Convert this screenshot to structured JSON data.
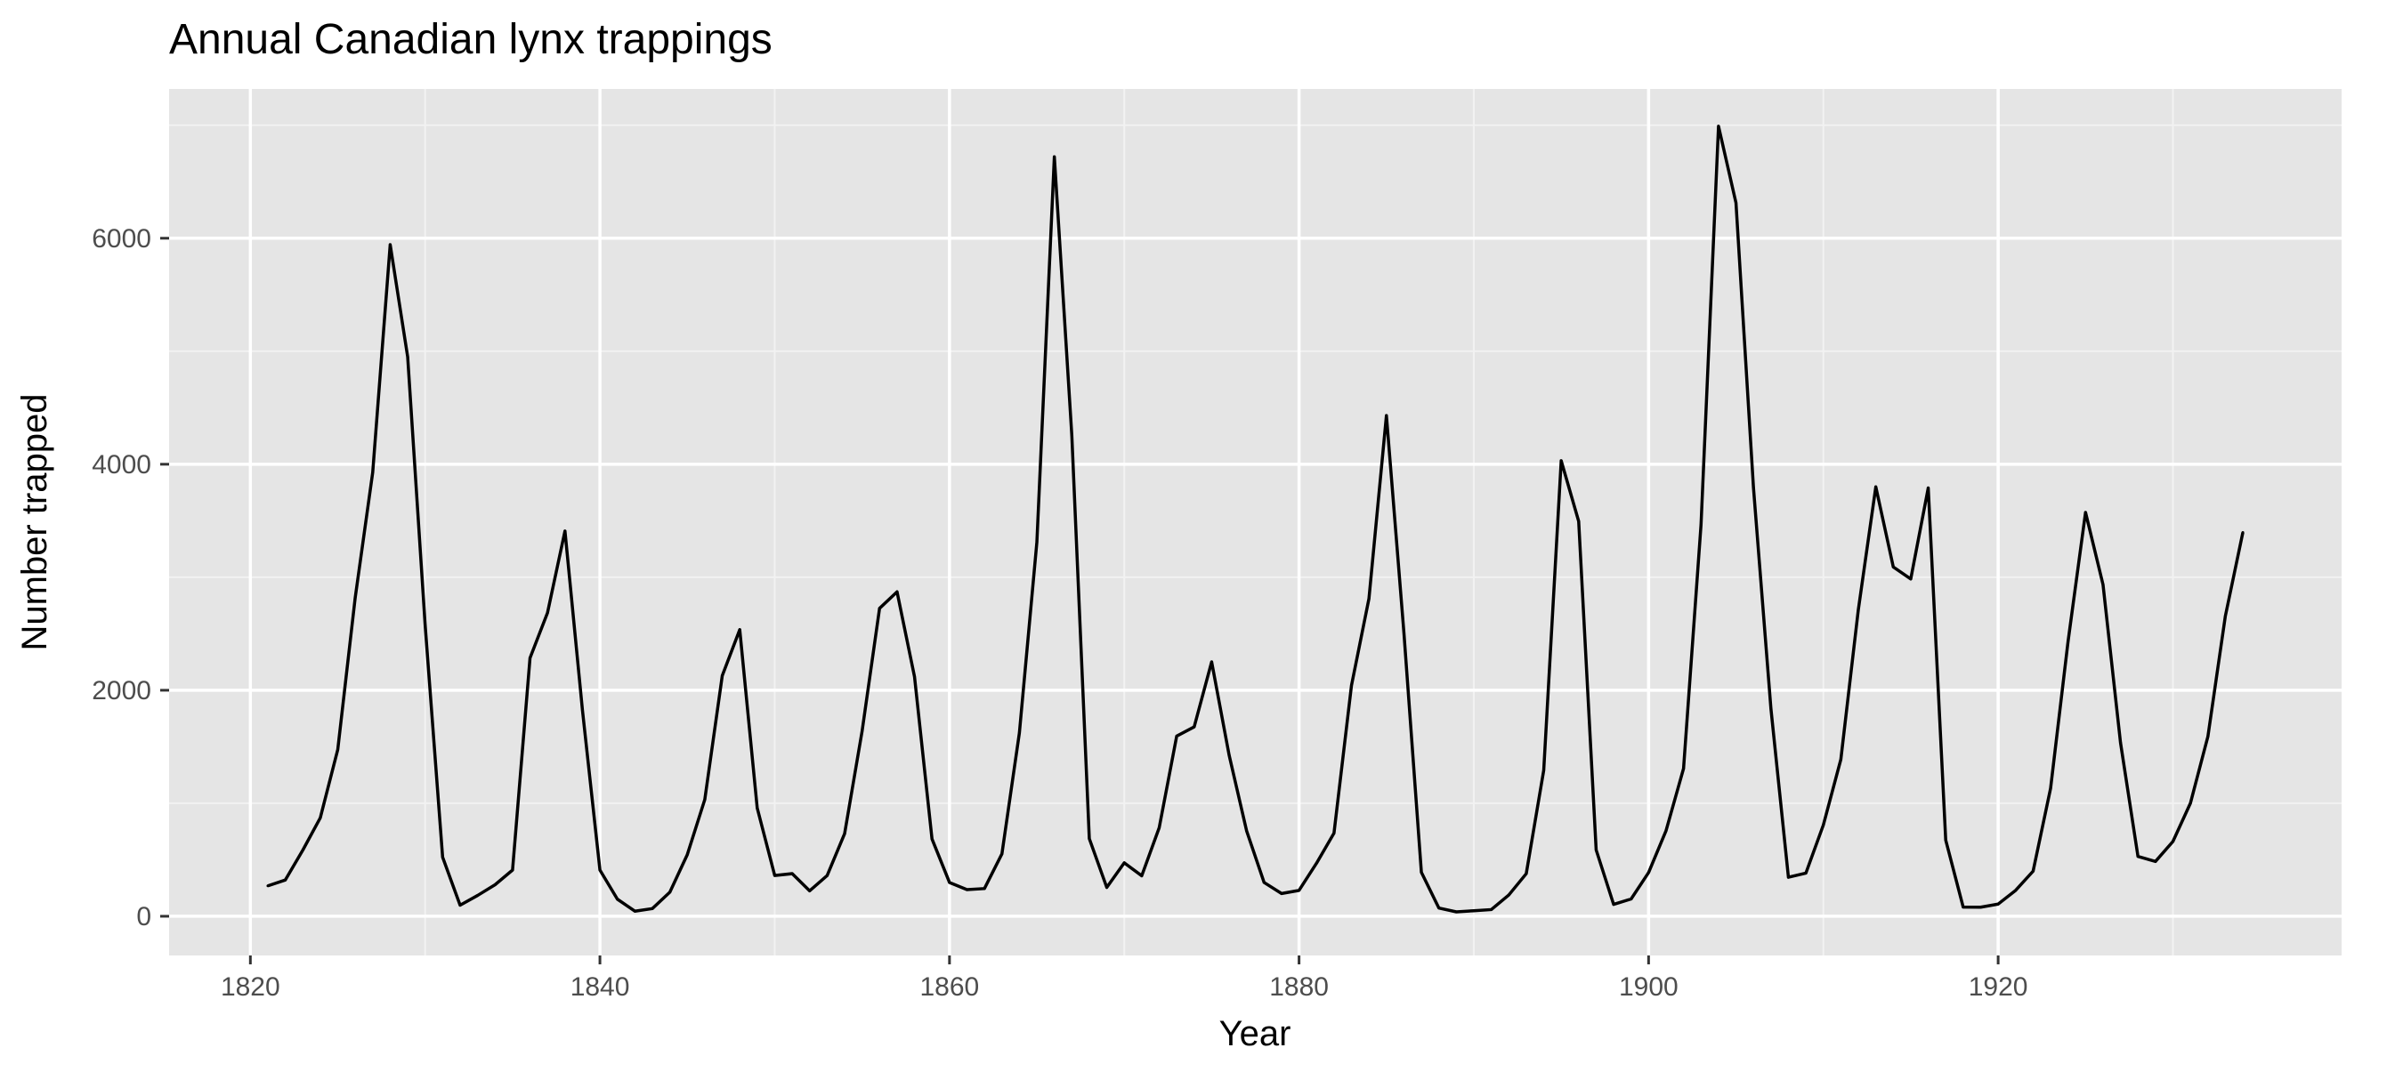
{
  "chart_data": {
    "type": "line",
    "title": "Annual Canadian lynx trappings",
    "xlabel": "Year",
    "ylabel": "Number trapped",
    "xlim": [
      1815.35,
      1939.65
    ],
    "ylim": [
      -346.9,
      7320.9
    ],
    "x_ticks": [
      1820,
      1840,
      1860,
      1880,
      1900,
      1920
    ],
    "x_tick_labels": [
      "1820",
      "1840",
      "1860",
      "1880",
      "1900",
      "1920"
    ],
    "y_ticks": [
      0,
      2000,
      4000,
      6000
    ],
    "y_tick_labels": [
      "0",
      "2000",
      "4000",
      "6000"
    ],
    "grid": true,
    "legend": "none",
    "colors": {
      "panel_background": "#e5e5e5",
      "grid_major": "#ffffff",
      "grid_minor": "#f2f2f2",
      "line": "#000000",
      "tick_label": "#4d4d4d"
    },
    "series": [
      {
        "x": [
          1821,
          1822,
          1823,
          1824,
          1825,
          1826,
          1827,
          1828,
          1829,
          1830,
          1831,
          1832,
          1833,
          1834,
          1835,
          1836,
          1837,
          1838,
          1839,
          1840,
          1841,
          1842,
          1843,
          1844,
          1845,
          1846,
          1847,
          1848,
          1849,
          1850,
          1851,
          1852,
          1853,
          1854,
          1855,
          1856,
          1857,
          1858,
          1859,
          1860,
          1861,
          1862,
          1863,
          1864,
          1865,
          1866,
          1867,
          1868,
          1869,
          1870,
          1871,
          1872,
          1873,
          1874,
          1875,
          1876,
          1877,
          1878,
          1879,
          1880,
          1881,
          1882,
          1883,
          1884,
          1885,
          1886,
          1887,
          1888,
          1889,
          1890,
          1891,
          1892,
          1893,
          1894,
          1895,
          1896,
          1897,
          1898,
          1899,
          1900,
          1901,
          1902,
          1903,
          1904,
          1905,
          1906,
          1907,
          1908,
          1909,
          1910,
          1911,
          1912,
          1913,
          1914,
          1915,
          1916,
          1917,
          1918,
          1919,
          1920,
          1921,
          1922,
          1923,
          1924,
          1925,
          1926,
          1927,
          1928,
          1929,
          1930,
          1931,
          1932,
          1933,
          1934
        ],
        "y": [
          269,
          321,
          585,
          871,
          1475,
          2821,
          3928,
          5943,
          4950,
          2577,
          523,
          98,
          184,
          279,
          409,
          2285,
          2685,
          3409,
          1824,
          409,
          151,
          45,
          68,
          213,
          546,
          1033,
          2129,
          2536,
          957,
          361,
          377,
          225,
          360,
          731,
          1638,
          2725,
          2871,
          2119,
          684,
          299,
          236,
          245,
          552,
          1623,
          3311,
          6721,
          4254,
          687,
          255,
          473,
          358,
          784,
          1594,
          1676,
          2251,
          1426,
          756,
          299,
          201,
          229,
          469,
          736,
          2042,
          2811,
          4431,
          2511,
          389,
          73,
          39,
          49,
          59,
          188,
          377,
          1292,
          4031,
          3495,
          587,
          105,
          153,
          387,
          758,
          1307,
          3465,
          6991,
          6313,
          3794,
          1836,
          345,
          382,
          808,
          1388,
          2713,
          3800,
          3091,
          2985,
          3790,
          674,
          81,
          80,
          108,
          229,
          399,
          1132,
          2432,
          3574,
          2935,
          1537,
          529,
          485,
          662,
          1000,
          1590,
          2657,
          3396
        ]
      }
    ]
  }
}
